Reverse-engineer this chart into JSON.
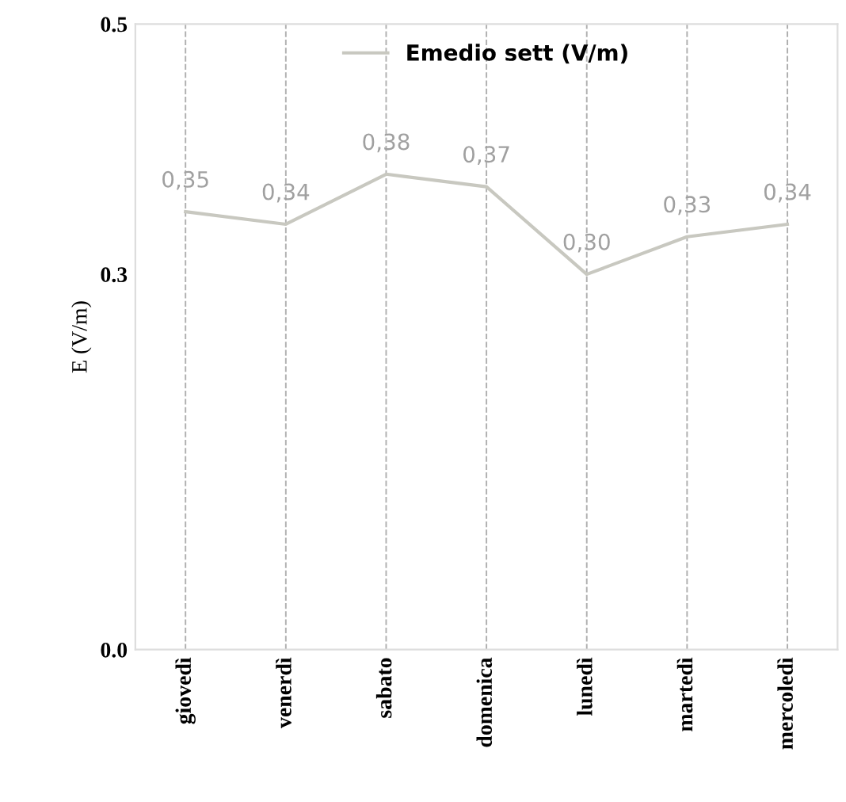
{
  "chart_data": {
    "type": "line",
    "ylabel": "E (V/m)",
    "categories": [
      "giovedì",
      "venerdì",
      "sabato",
      "domenica",
      "lunedì",
      "martedì",
      "mercoledì"
    ],
    "series": [
      {
        "name": "Emedio sett (V/m)",
        "color": "#c8c8c0",
        "values": [
          0.35,
          0.34,
          0.38,
          0.37,
          0.3,
          0.33,
          0.34
        ],
        "value_labels": [
          "0,35",
          "0,34",
          "0,38",
          "0,37",
          "0,30",
          "0,33",
          "0,34"
        ]
      }
    ],
    "ylim": [
      0,
      0.5
    ],
    "yticks": [
      {
        "value": 0.0,
        "label": "0.0"
      },
      0.3,
      0.5
    ],
    "grid": "x",
    "legend": "top",
    "marker": "none",
    "line_style": "solid"
  }
}
